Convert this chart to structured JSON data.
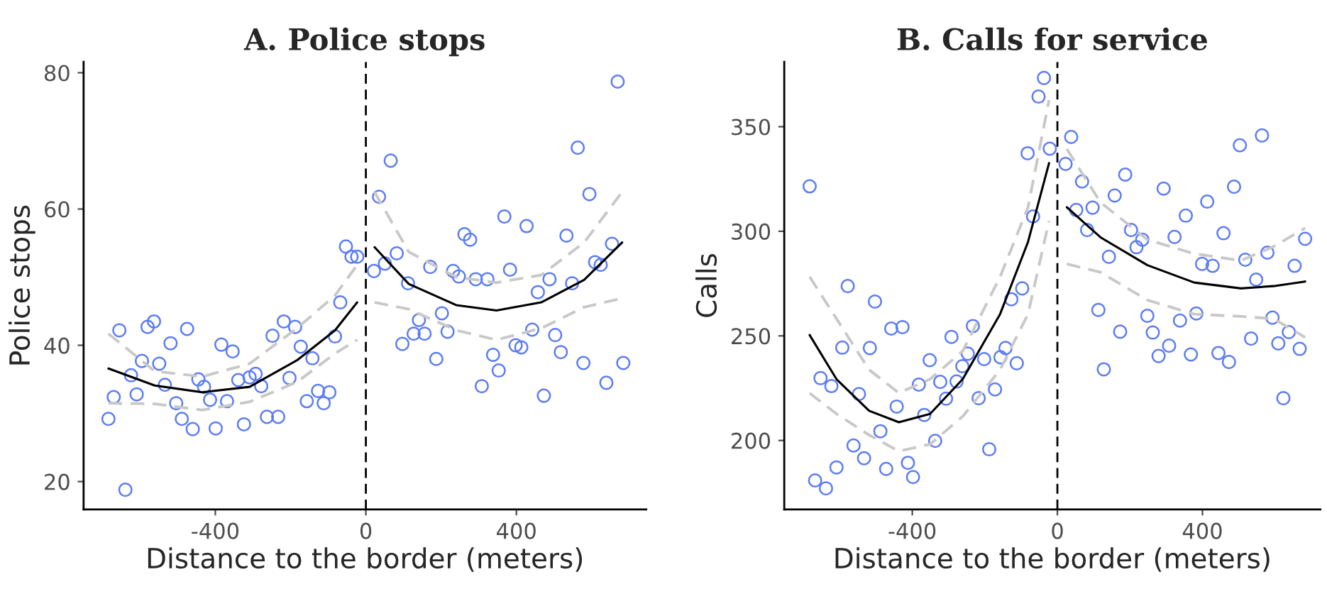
{
  "chart_data": [
    {
      "type": "scatter",
      "title": "A. Police stops",
      "xlabel": "Distance to the border (meters)",
      "ylabel": "Police stops",
      "xlim": [
        -750,
        745
      ],
      "ylim": [
        15.9,
        81.6
      ],
      "xticks": [
        {
          "value": -400,
          "label": "-400"
        },
        0,
        400
      ],
      "yticks": [
        20,
        40,
        60,
        80
      ],
      "grid": false,
      "legend": false,
      "ref_lines": [
        {
          "axis": "x",
          "value": 0,
          "color": "#000000",
          "line_style": "dashed"
        }
      ],
      "series": [
        {
          "color": "#5b7cf5",
          "marker": "circle",
          "x": [
            -684,
            -639,
            -670,
            -655,
            -624,
            -609,
            -595,
            -580,
            -563,
            -549,
            -534,
            -519,
            -504,
            -489,
            -475,
            -460,
            -445,
            -430,
            -414,
            -399,
            -384,
            -369,
            -354,
            -339,
            -324,
            -309,
            -293,
            -278,
            -263,
            -248,
            -233,
            -218,
            -203,
            -188,
            -173,
            -157,
            -142,
            -127,
            -112,
            -97,
            -82,
            -68,
            -53,
            -38,
            -23,
            21.5,
            35,
            50.5,
            66,
            82,
            97,
            112,
            127,
            141,
            156,
            171,
            187,
            202,
            217,
            232,
            247,
            262,
            277,
            292,
            308,
            323,
            338,
            353,
            368,
            383,
            398,
            413,
            427,
            442,
            457,
            473,
            488,
            503,
            518,
            533,
            548,
            563,
            578,
            594,
            609,
            624,
            639,
            654,
            669,
            684
          ],
          "values": [
            29.2,
            18.8,
            32.4,
            42.2,
            35.6,
            32.8,
            37.7,
            42.7,
            43.5,
            37.3,
            34.2,
            40.3,
            31.5,
            29.2,
            42.4,
            27.7,
            35.0,
            33.9,
            32.0,
            27.8,
            40.1,
            31.8,
            39.1,
            34.9,
            28.4,
            35.3,
            35.8,
            34.0,
            29.5,
            41.4,
            29.5,
            43.5,
            35.2,
            42.7,
            39.8,
            31.8,
            38.1,
            33.3,
            31.5,
            33.1,
            41.3,
            46.3,
            54.5,
            53.0,
            53.0,
            50.9,
            61.8,
            52.0,
            67.1,
            53.5,
            40.2,
            49.1,
            41.7,
            43.7,
            41.7,
            51.5,
            38.0,
            44.7,
            42.0,
            50.9,
            50.1,
            56.3,
            55.5,
            49.7,
            34.0,
            49.7,
            38.6,
            36.3,
            58.9,
            51.1,
            40.0,
            39.7,
            57.5,
            42.3,
            47.8,
            32.6,
            49.7,
            41.5,
            39.0,
            56.1,
            49.1,
            69.0,
            37.4,
            62.2,
            52.2,
            51.8,
            34.5,
            54.9,
            78.7,
            37.4
          ]
        },
        {
          "type": "line",
          "color": "#000000",
          "line_style": "solid",
          "x": [
            -684,
            -561,
            -435,
            -309,
            -183,
            -82,
            -23
          ],
          "values": [
            36.6,
            34.1,
            33.1,
            33.9,
            37.8,
            42.2,
            46.3
          ]
        },
        {
          "type": "line",
          "color": "#c8c8c8",
          "line_style": "dashed",
          "x": [
            -684,
            -561,
            -435,
            -309,
            -183,
            -82,
            -23
          ],
          "values": [
            31.5,
            31.4,
            30.5,
            31.7,
            34.6,
            38.8,
            40.8
          ]
        },
        {
          "type": "line",
          "color": "#c8c8c8",
          "line_style": "dashed",
          "x": [
            -684,
            -561,
            -435,
            -309,
            -183,
            -82,
            -23
          ],
          "values": [
            41.7,
            36.2,
            35.4,
            37.3,
            42.5,
            47.3,
            51.8
          ]
        },
        {
          "type": "line",
          "color": "#000000",
          "line_style": "solid",
          "x": [
            23,
            114,
            240,
            347,
            466,
            580,
            681
          ],
          "values": [
            54.4,
            49.0,
            45.9,
            45.1,
            46.3,
            49.6,
            55.1
          ]
        },
        {
          "type": "line",
          "color": "#c8c8c8",
          "line_style": "dashed",
          "x": [
            23,
            114,
            240,
            347,
            466,
            580,
            681
          ],
          "values": [
            46.3,
            45.3,
            42.2,
            40.8,
            42.5,
            45.6,
            46.9
          ]
        },
        {
          "type": "line",
          "color": "#c8c8c8",
          "line_style": "dashed",
          "x": [
            23,
            114,
            240,
            347,
            466,
            580,
            681
          ],
          "values": [
            62.5,
            53.7,
            50.0,
            49.2,
            50.3,
            55.1,
            62.5
          ]
        }
      ]
    },
    {
      "type": "scatter",
      "title": "B. Calls for service",
      "xlabel": "Distance to the border (meters)",
      "ylabel": "Calls",
      "xlim": [
        -753,
        725
      ],
      "ylim": [
        167,
        381
      ],
      "xticks": [
        {
          "value": -400,
          "label": "-400"
        },
        0,
        400
      ],
      "yticks": [
        200,
        250,
        300,
        350
      ],
      "grid": false,
      "legend": false,
      "ref_lines": [
        {
          "axis": "x",
          "value": 0,
          "color": "#000000",
          "line_style": "dashed"
        }
      ],
      "series": [
        {
          "color": "#5b7cf5",
          "marker": "circle",
          "x": [
            -683,
            -668,
            -653,
            -638,
            -623,
            -609,
            -593,
            -578,
            -562,
            -547,
            -533,
            -517,
            -503,
            -488,
            -472,
            -458,
            -443,
            -427,
            -412,
            -398,
            -382,
            -367,
            -352,
            -337,
            -323,
            -307,
            -292,
            -278,
            -262,
            -247,
            -233,
            -217,
            -202,
            -188,
            -172,
            -157,
            -143,
            -127,
            -112,
            -97,
            -82,
            -67,
            -52,
            -37,
            -21,
            22.5,
            38,
            52,
            68,
            82,
            97,
            113,
            128,
            142,
            158,
            173,
            187,
            203,
            218,
            234,
            248,
            263,
            279,
            293,
            308,
            323,
            338,
            354,
            368,
            383,
            399,
            413,
            428,
            444,
            458,
            473,
            487,
            503,
            518,
            534,
            548,
            564,
            579,
            593,
            609,
            623,
            638,
            654,
            668,
            683
          ],
          "values": [
            321.5,
            180.9,
            229.8,
            177.1,
            226.0,
            187.1,
            244.4,
            273.8,
            197.6,
            222.2,
            191.5,
            244.2,
            266.4,
            204.4,
            186.4,
            253.5,
            216.2,
            254.2,
            189.3,
            182.5,
            226.7,
            212.2,
            238.4,
            199.8,
            228.0,
            220.0,
            249.5,
            228.2,
            235.5,
            241.5,
            254.7,
            220.2,
            238.9,
            195.8,
            224.4,
            239.8,
            244.2,
            267.5,
            236.9,
            272.7,
            337.3,
            307.1,
            364.4,
            373.3,
            339.5,
            332.2,
            345.1,
            310.2,
            323.8,
            300.6,
            311.3,
            262.4,
            234.0,
            287.8,
            317.1,
            252.0,
            327.1,
            300.6,
            292.4,
            296.0,
            259.6,
            251.6,
            240.4,
            320.4,
            245.3,
            297.3,
            257.3,
            307.5,
            241.1,
            260.7,
            284.4,
            314.2,
            283.5,
            241.8,
            299.1,
            237.5,
            321.3,
            341.1,
            286.4,
            248.7,
            276.9,
            345.8,
            289.8,
            258.7,
            246.4,
            220.2,
            251.8,
            283.5,
            243.8,
            296.4
          ]
        },
        {
          "type": "line",
          "color": "#000000",
          "line_style": "solid",
          "x": [
            -683,
            -609,
            -519,
            -437,
            -351,
            -261,
            -158,
            -81,
            -23
          ],
          "values": [
            250.4,
            229.3,
            214.2,
            208.7,
            212.7,
            229.3,
            260.4,
            294.9,
            332.6
          ]
        },
        {
          "type": "line",
          "color": "#c8c8c8",
          "line_style": "dashed",
          "x": [
            -683,
            -609,
            -519,
            -437,
            -351,
            -261,
            -158,
            -81,
            -23
          ],
          "values": [
            222.6,
            212.7,
            202.6,
            194.9,
            198.2,
            211.5,
            233.8,
            260.4,
            304.9
          ]
        },
        {
          "type": "line",
          "color": "#c8c8c8",
          "line_style": "dashed",
          "x": [
            -683,
            -609,
            -519,
            -437,
            -351,
            -261,
            -158,
            -81,
            -23
          ],
          "values": [
            278.2,
            258.2,
            233.8,
            222.7,
            229.3,
            242.7,
            278.2,
            311.5,
            362.7
          ]
        },
        {
          "type": "line",
          "color": "#000000",
          "line_style": "solid",
          "x": [
            26,
            119,
            248,
            377,
            506,
            596,
            683
          ],
          "values": [
            311.5,
            297.1,
            283.8,
            275.5,
            272.7,
            273.8,
            276.0
          ]
        },
        {
          "type": "line",
          "color": "#c8c8c8",
          "line_style": "dashed",
          "x": [
            26,
            119,
            248,
            377,
            506,
            596,
            683
          ],
          "values": [
            284.4,
            280.4,
            267.1,
            260.4,
            259.3,
            258.2,
            249.3
          ]
        },
        {
          "type": "line",
          "color": "#c8c8c8",
          "line_style": "dashed",
          "x": [
            26,
            119,
            248,
            377,
            506,
            596,
            683
          ],
          "values": [
            339.3,
            313.8,
            296.0,
            289.3,
            286.0,
            292.7,
            301.5
          ]
        }
      ]
    }
  ]
}
